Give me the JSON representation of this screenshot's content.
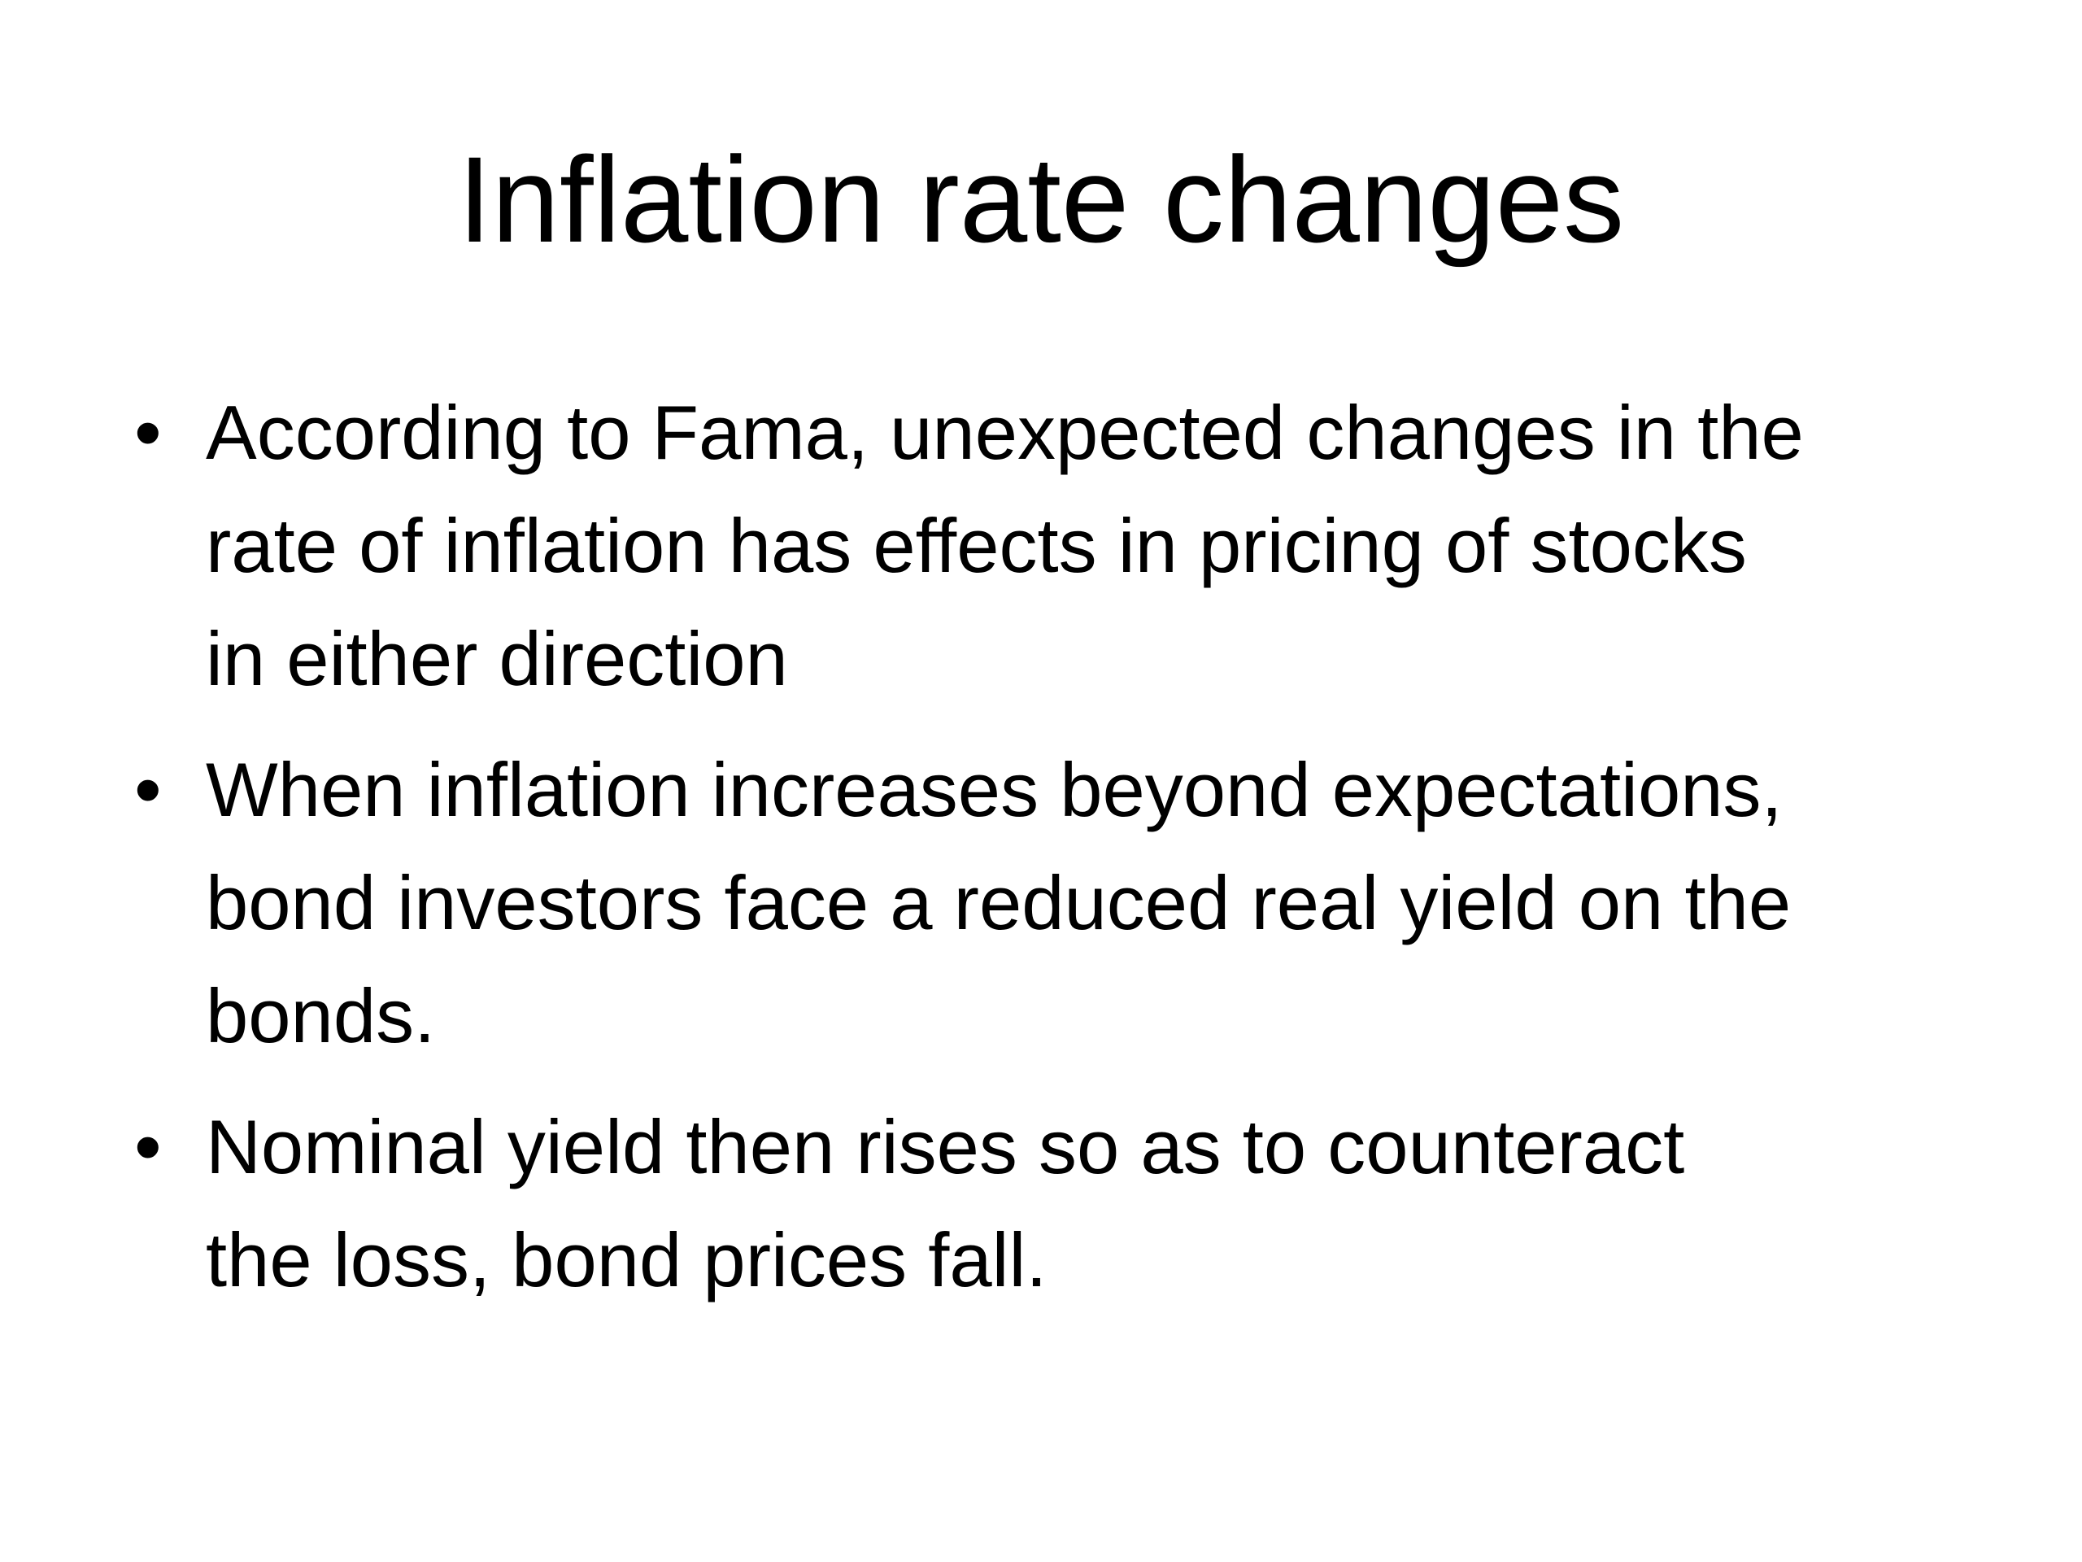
{
  "slide": {
    "title": "Inflation rate changes",
    "bullets": [
      [
        "According to Fama, unexpected changes in the",
        "rate of inflation has effects in pricing of stocks",
        "in either direction"
      ],
      [
        "When inflation increases beyond expectations,",
        "bond investors face a reduced real yield on the",
        "bonds."
      ],
      [
        "Nominal yield then rises so as to counteract",
        "the loss, bond prices fall."
      ]
    ]
  }
}
